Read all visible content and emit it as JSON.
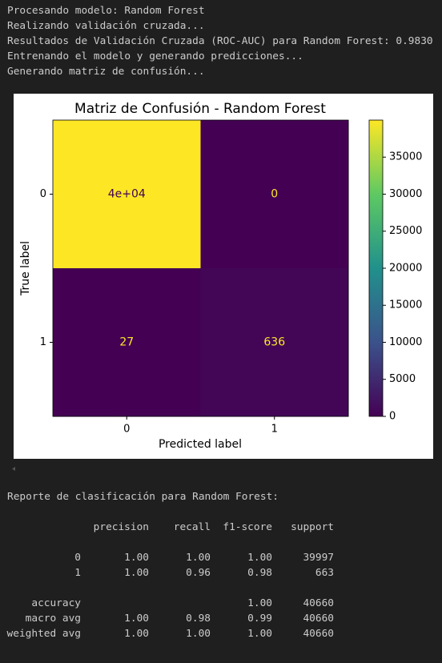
{
  "console_lines": [
    "Procesando modelo: Random Forest",
    "Realizando validación cruzada...",
    "Resultados de Validación Cruzada (ROC-AUC) para Random Forest: 0.9830",
    "Entrenando el modelo y generando predicciones...",
    "Generando matriz de confusión..."
  ],
  "chart_data": {
    "type": "heatmap",
    "title": "Matriz de Confusión - Random Forest",
    "x_label": "Predicted label",
    "y_label": "True label",
    "x_categories": [
      "0",
      "1"
    ],
    "y_categories": [
      "0",
      "1"
    ],
    "values": [
      [
        39997,
        0
      ],
      [
        27,
        636
      ]
    ],
    "value_labels": [
      [
        "4e+04",
        "0"
      ],
      [
        "27",
        "636"
      ]
    ],
    "colormap": "viridis",
    "clim": [
      0,
      39997
    ],
    "cticks": [
      0,
      5000,
      10000,
      15000,
      20000,
      25000,
      30000,
      35000
    ]
  },
  "report": {
    "title": "Reporte de clasificación para Random Forest:",
    "headers": [
      "precision",
      "recall",
      "f1-score",
      "support"
    ],
    "rows": [
      {
        "label": "0",
        "cells": [
          "1.00",
          "1.00",
          "1.00",
          "39997"
        ]
      },
      {
        "label": "1",
        "cells": [
          "1.00",
          "0.96",
          "0.98",
          "663"
        ]
      },
      {
        "label": "accuracy",
        "cells": [
          null,
          null,
          "1.00",
          "40660"
        ]
      },
      {
        "label": "macro avg",
        "cells": [
          "1.00",
          "0.98",
          "0.99",
          "40660"
        ]
      },
      {
        "label": "weighted avg",
        "cells": [
          "1.00",
          "1.00",
          "1.00",
          "40660"
        ]
      }
    ]
  }
}
